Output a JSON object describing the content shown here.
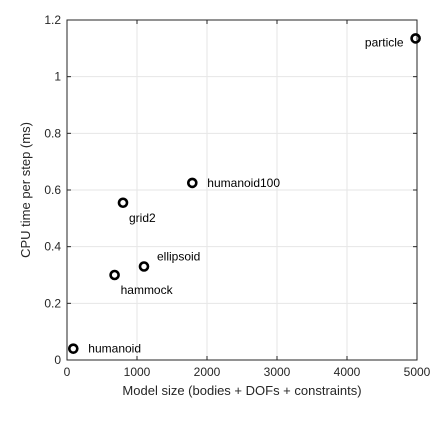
{
  "chart_data": {
    "type": "scatter",
    "title": "",
    "xlabel": "Model size (bodies + DOFs + constraints)",
    "ylabel": "CPU time per step (ms)",
    "xlim": [
      0,
      5000
    ],
    "ylim": [
      0,
      1.2
    ],
    "xticks": [
      0,
      1000,
      2000,
      3000,
      4000,
      5000
    ],
    "yticks": [
      0,
      0.2,
      0.4,
      0.6,
      0.8,
      1,
      1.2
    ],
    "xtick_labels": [
      "0",
      "1000",
      "2000",
      "3000",
      "4000",
      "5000"
    ],
    "ytick_labels": [
      "0",
      "0.2",
      "0.4",
      "0.6",
      "0.8",
      "1",
      "1.2"
    ],
    "grid": true,
    "legend": "none",
    "marker": "circle-open",
    "marker_color": "#000000",
    "points": [
      {
        "label": "humanoid",
        "x": 90,
        "y": 0.04,
        "label_pos": "right"
      },
      {
        "label": "hammock",
        "x": 680,
        "y": 0.3,
        "label_pos": "below-right"
      },
      {
        "label": "ellipsoid",
        "x": 1100,
        "y": 0.33,
        "label_pos": "above-right"
      },
      {
        "label": "grid2",
        "x": 800,
        "y": 0.555,
        "label_pos": "below-right"
      },
      {
        "label": "humanoid100",
        "x": 1790,
        "y": 0.625,
        "label_pos": "right"
      },
      {
        "label": "particle",
        "x": 4980,
        "y": 1.135,
        "label_pos": "below-left"
      }
    ]
  }
}
